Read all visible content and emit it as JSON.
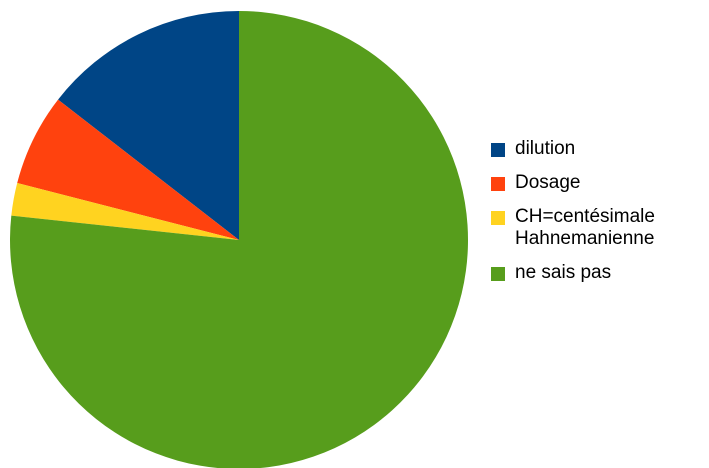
{
  "chart_data": {
    "type": "pie",
    "title": "",
    "categories": [
      "dilution",
      "Dosage",
      "CH=centésimale Hahnemanienne",
      "ne sais pas"
    ],
    "values": [
      14.5,
      6.5,
      2.3,
      76.7
    ],
    "colors": [
      "#004586",
      "#ff420e",
      "#ffd320",
      "#579d1c"
    ],
    "start_angle_deg": 0,
    "direction": "counterclockwise",
    "legend_position": "right",
    "legend": [
      {
        "label": "dilution",
        "color": "#004586"
      },
      {
        "label": "Dosage",
        "color": "#ff420e"
      },
      {
        "label": "CH=centésimale\nHahnemanienne",
        "color": "#ffd320"
      },
      {
        "label": "ne sais pas",
        "color": "#579d1c"
      }
    ]
  }
}
